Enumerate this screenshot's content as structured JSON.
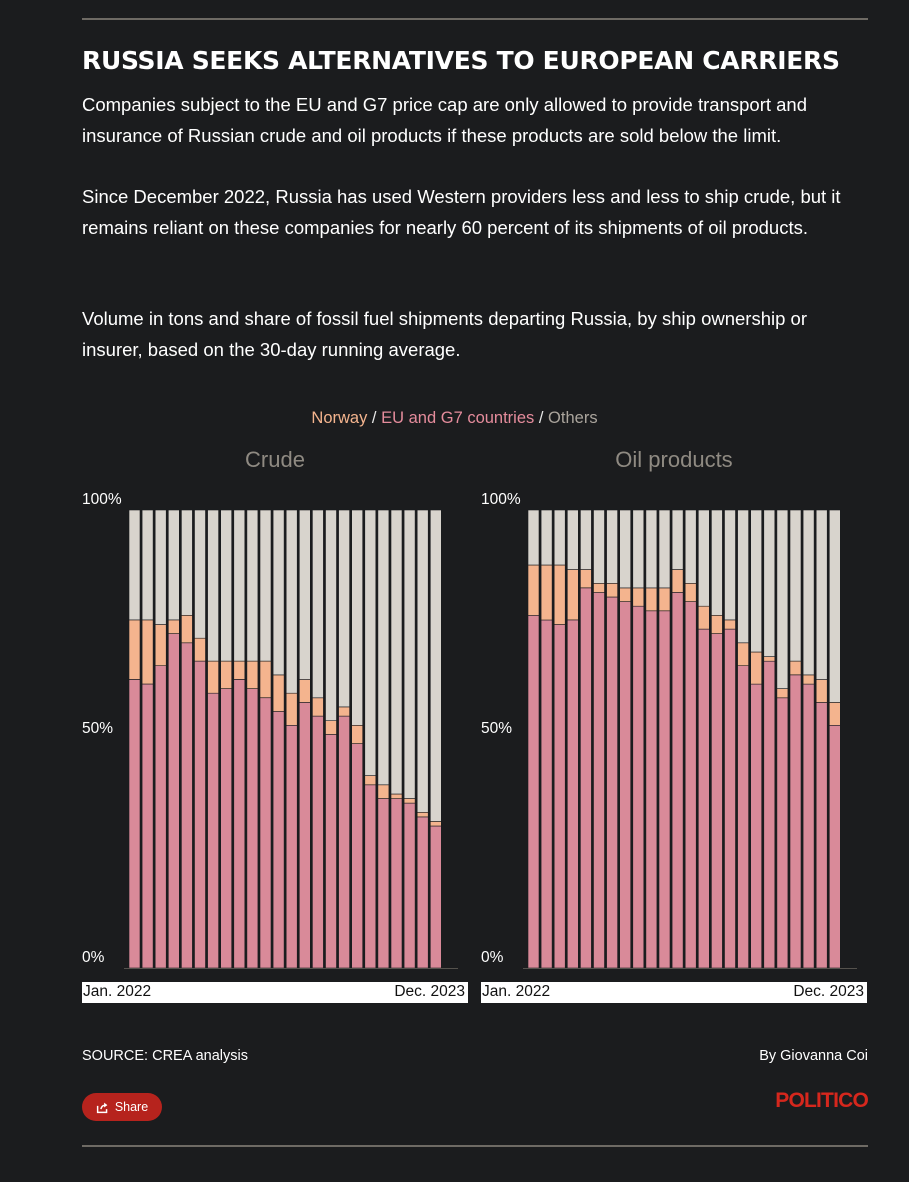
{
  "title": "RUSSIA SEEKS ALTERNATIVES TO EUROPEAN CARRIERS",
  "paragraphs": [
    "Companies subject to the EU and G7 price cap are only allowed to provide transport and insurance of Russian crude and oil products if these products are sold below the limit.",
    "Since December 2022, Russia has used Western providers less and less to ship crude, but it remains reliant on these companies for nearly 60 percent of its shipments of oil products.",
    "Volume in tons and share of fossil fuel shipments departing Russia, by ship ownership or insurer, based on the 30-day running average."
  ],
  "legend": {
    "norway": "Norway",
    "eu_g7": "EU and G7 countries",
    "others": "Others",
    "separator": " / "
  },
  "colors": {
    "norway": "#f4b48e",
    "eu_g7": "#d98a99",
    "others": "#d8d4cd",
    "norway_text": "#f4b48e",
    "eu_g7_text": "#e58c9c",
    "others_text": "#aaa49c"
  },
  "chart_data": [
    {
      "type": "bar",
      "stacked": true,
      "title": "Crude",
      "y_ticks": [
        "100%",
        "50%",
        "0%"
      ],
      "ylim": [
        0,
        100
      ],
      "x_start_label": "Jan. 2022",
      "x_end_label": "Dec. 2023",
      "series": [
        {
          "name": "EU and G7 countries",
          "values": [
            63,
            62,
            66,
            73,
            71,
            67,
            60,
            61,
            63,
            61,
            59,
            56,
            53,
            58,
            55,
            51,
            55,
            49,
            40,
            37,
            37,
            36,
            33,
            31
          ]
        },
        {
          "name": "Norway",
          "values": [
            13,
            14,
            9,
            3,
            6,
            5,
            7,
            6,
            4,
            6,
            8,
            8,
            7,
            5,
            4,
            3,
            2,
            4,
            2,
            3,
            1,
            1,
            1,
            1
          ]
        },
        {
          "name": "Others",
          "values": [
            24,
            24,
            25,
            24,
            23,
            28,
            33,
            33,
            33,
            33,
            33,
            36,
            40,
            37,
            41,
            46,
            43,
            47,
            58,
            60,
            62,
            63,
            66,
            68
          ]
        }
      ]
    },
    {
      "type": "bar",
      "stacked": true,
      "title": "Oil products",
      "y_ticks": [
        "100%",
        "50%",
        "0%"
      ],
      "ylim": [
        0,
        100
      ],
      "x_start_label": "Jan. 2022",
      "x_end_label": "Dec. 2023",
      "series": [
        {
          "name": "EU and G7 countries",
          "values": [
            77,
            76,
            75,
            76,
            83,
            82,
            81,
            80,
            79,
            78,
            78,
            82,
            80,
            74,
            73,
            74,
            66,
            62,
            67,
            59,
            64,
            62,
            58,
            53
          ]
        },
        {
          "name": "Norway",
          "values": [
            11,
            12,
            13,
            11,
            4,
            2,
            3,
            3,
            4,
            5,
            5,
            5,
            4,
            5,
            4,
            2,
            5,
            7,
            1,
            2,
            3,
            2,
            5,
            5
          ]
        },
        {
          "name": "Others",
          "values": [
            12,
            12,
            12,
            13,
            13,
            16,
            16,
            17,
            17,
            17,
            17,
            13,
            16,
            21,
            23,
            24,
            29,
            31,
            32,
            39,
            33,
            36,
            37,
            42
          ]
        }
      ]
    }
  ],
  "footer": {
    "source": "SOURCE: CREA analysis",
    "byline": "By Giovanna Coi",
    "share_label": "Share",
    "logo": "POLITICO"
  }
}
